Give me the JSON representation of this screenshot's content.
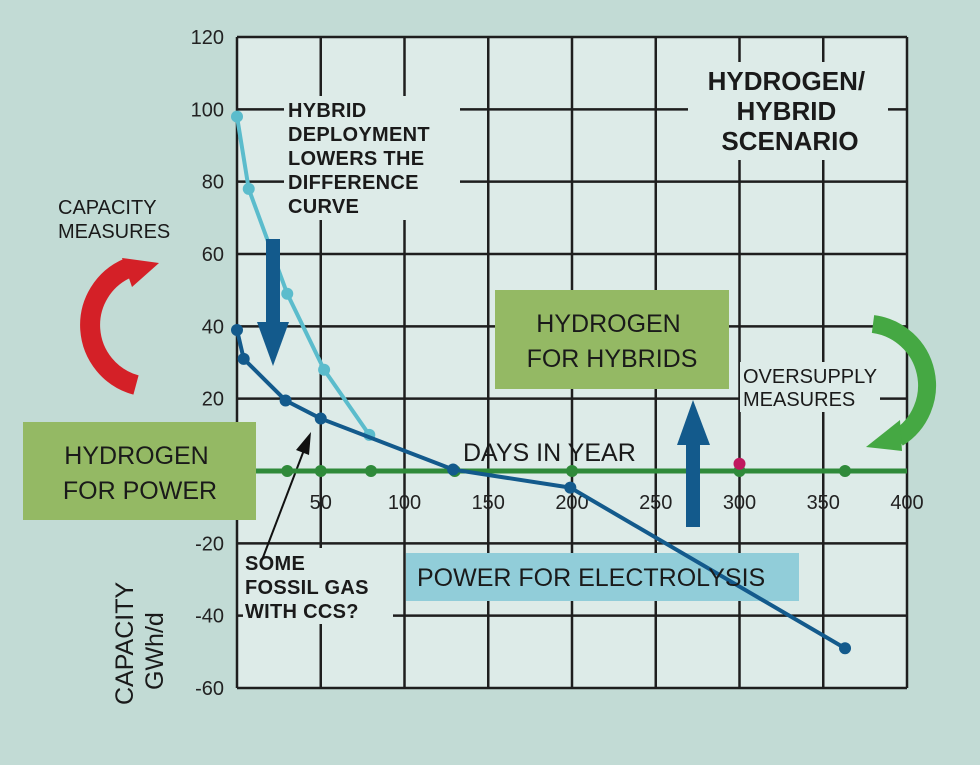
{
  "chart_data": {
    "type": "line",
    "title": [
      "HYDROGEN/",
      "HYBRID",
      "SCENARIO"
    ],
    "xlabel": "DAYS IN YEAR",
    "ylabel": [
      "CAPACITY",
      "GWh/d"
    ],
    "xlim": [
      0,
      400
    ],
    "ylim": [
      -60,
      120
    ],
    "xticks": [
      50,
      100,
      150,
      200,
      250,
      300,
      350,
      400
    ],
    "yticks": [
      120,
      100,
      80,
      60,
      40,
      20,
      -20,
      -40,
      -60
    ],
    "grid": true,
    "series": [
      {
        "color": "#5bbccc",
        "x": [
          0,
          7,
          30,
          52,
          79
        ],
        "y": [
          98,
          78,
          49,
          28,
          10
        ]
      },
      {
        "color": "#135a8c",
        "x": [
          0,
          4,
          29,
          50,
          129,
          199,
          363
        ],
        "y": [
          39,
          31,
          19.5,
          14.5,
          0.4,
          -4.6,
          -49
        ]
      },
      {
        "color": "#2f8a3a",
        "x": [
          0,
          30,
          50,
          80,
          130,
          200,
          300,
          363,
          400
        ],
        "y": [
          0,
          0,
          0,
          0,
          0,
          0,
          0,
          0,
          0
        ],
        "markers_at": [
          30,
          50,
          80,
          130,
          200,
          300,
          363
        ]
      }
    ],
    "highlight_point": {
      "x": 300,
      "y": 2,
      "color": "#c0185e"
    },
    "annotations": {
      "hybrid": [
        "HYBRID",
        "DEPLOYMENT",
        "LOWERS THE",
        "DIFFERENCE",
        "CURVE"
      ],
      "capacity_measures": [
        "CAPACITY",
        "MEASURES"
      ],
      "oversupply_measures": [
        "OVERSUPPLY",
        "MEASURES"
      ],
      "fossil": [
        "SOME",
        "FOSSIL GAS",
        "WITH CCS?"
      ],
      "hydrogen_for_power": [
        "HYDROGEN",
        "FOR POWER"
      ],
      "hydrogen_for_hybrids": [
        "HYDROGEN",
        "FOR HYBRIDS"
      ],
      "power_for_electrolysis": "POWER FOR ELECTROLYSIS"
    },
    "colors": {
      "background": "#c2dbd5",
      "plot_background": "#ddebe8",
      "green_box": "#94b964",
      "blue_box": "#91cdd9",
      "red_arrow": "#d42027",
      "green_arrow": "#45a843",
      "blue_arrow": "#135a8c"
    }
  }
}
